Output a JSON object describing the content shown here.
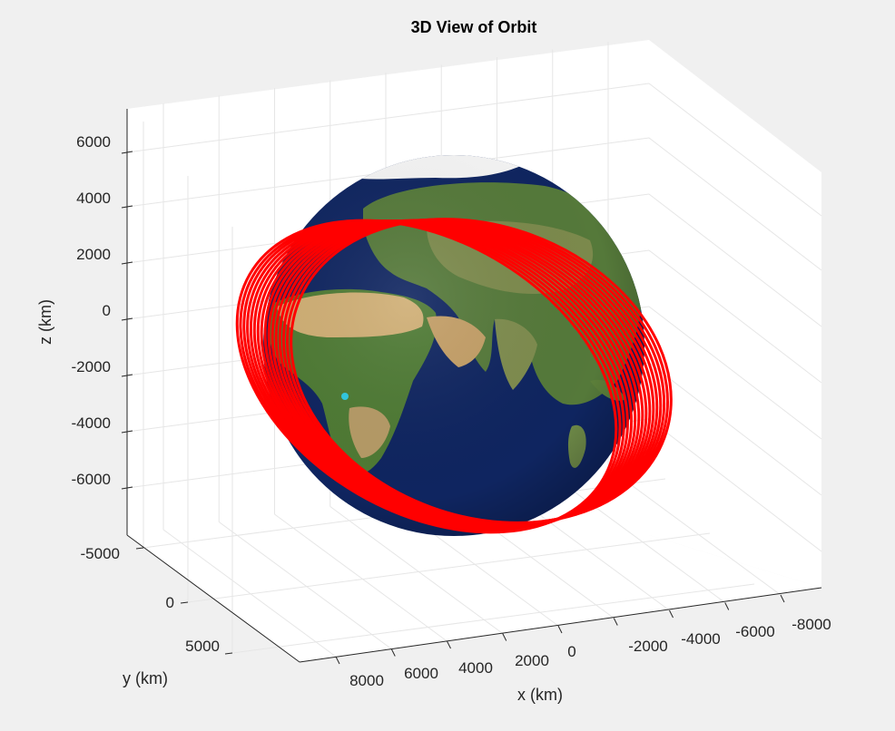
{
  "chart_data": {
    "type": "3d-line",
    "title": "3D View of Orbit",
    "xlabel": "x (km)",
    "ylabel": "y (km)",
    "zlabel": "z (km)",
    "x_ticks": [
      "8000",
      "6000",
      "4000",
      "2000",
      "0",
      "-2000",
      "-4000",
      "-6000",
      "-8000"
    ],
    "y_ticks": [
      "-5000",
      "0",
      "5000"
    ],
    "z_ticks": [
      "6000",
      "4000",
      "2000",
      "0",
      "-2000",
      "-4000",
      "-6000"
    ],
    "grid": true,
    "surface": "earth-globe",
    "series": [
      {
        "color": "#ff0000"
      }
    ],
    "colors": {
      "background": "#f0f0f0",
      "axes": "#ffffff",
      "orbit": "#ff0000",
      "ocean": "#0f2560",
      "land": "#5a7f34",
      "desert": "#c9a870",
      "ice": "#f4f4f4"
    }
  }
}
